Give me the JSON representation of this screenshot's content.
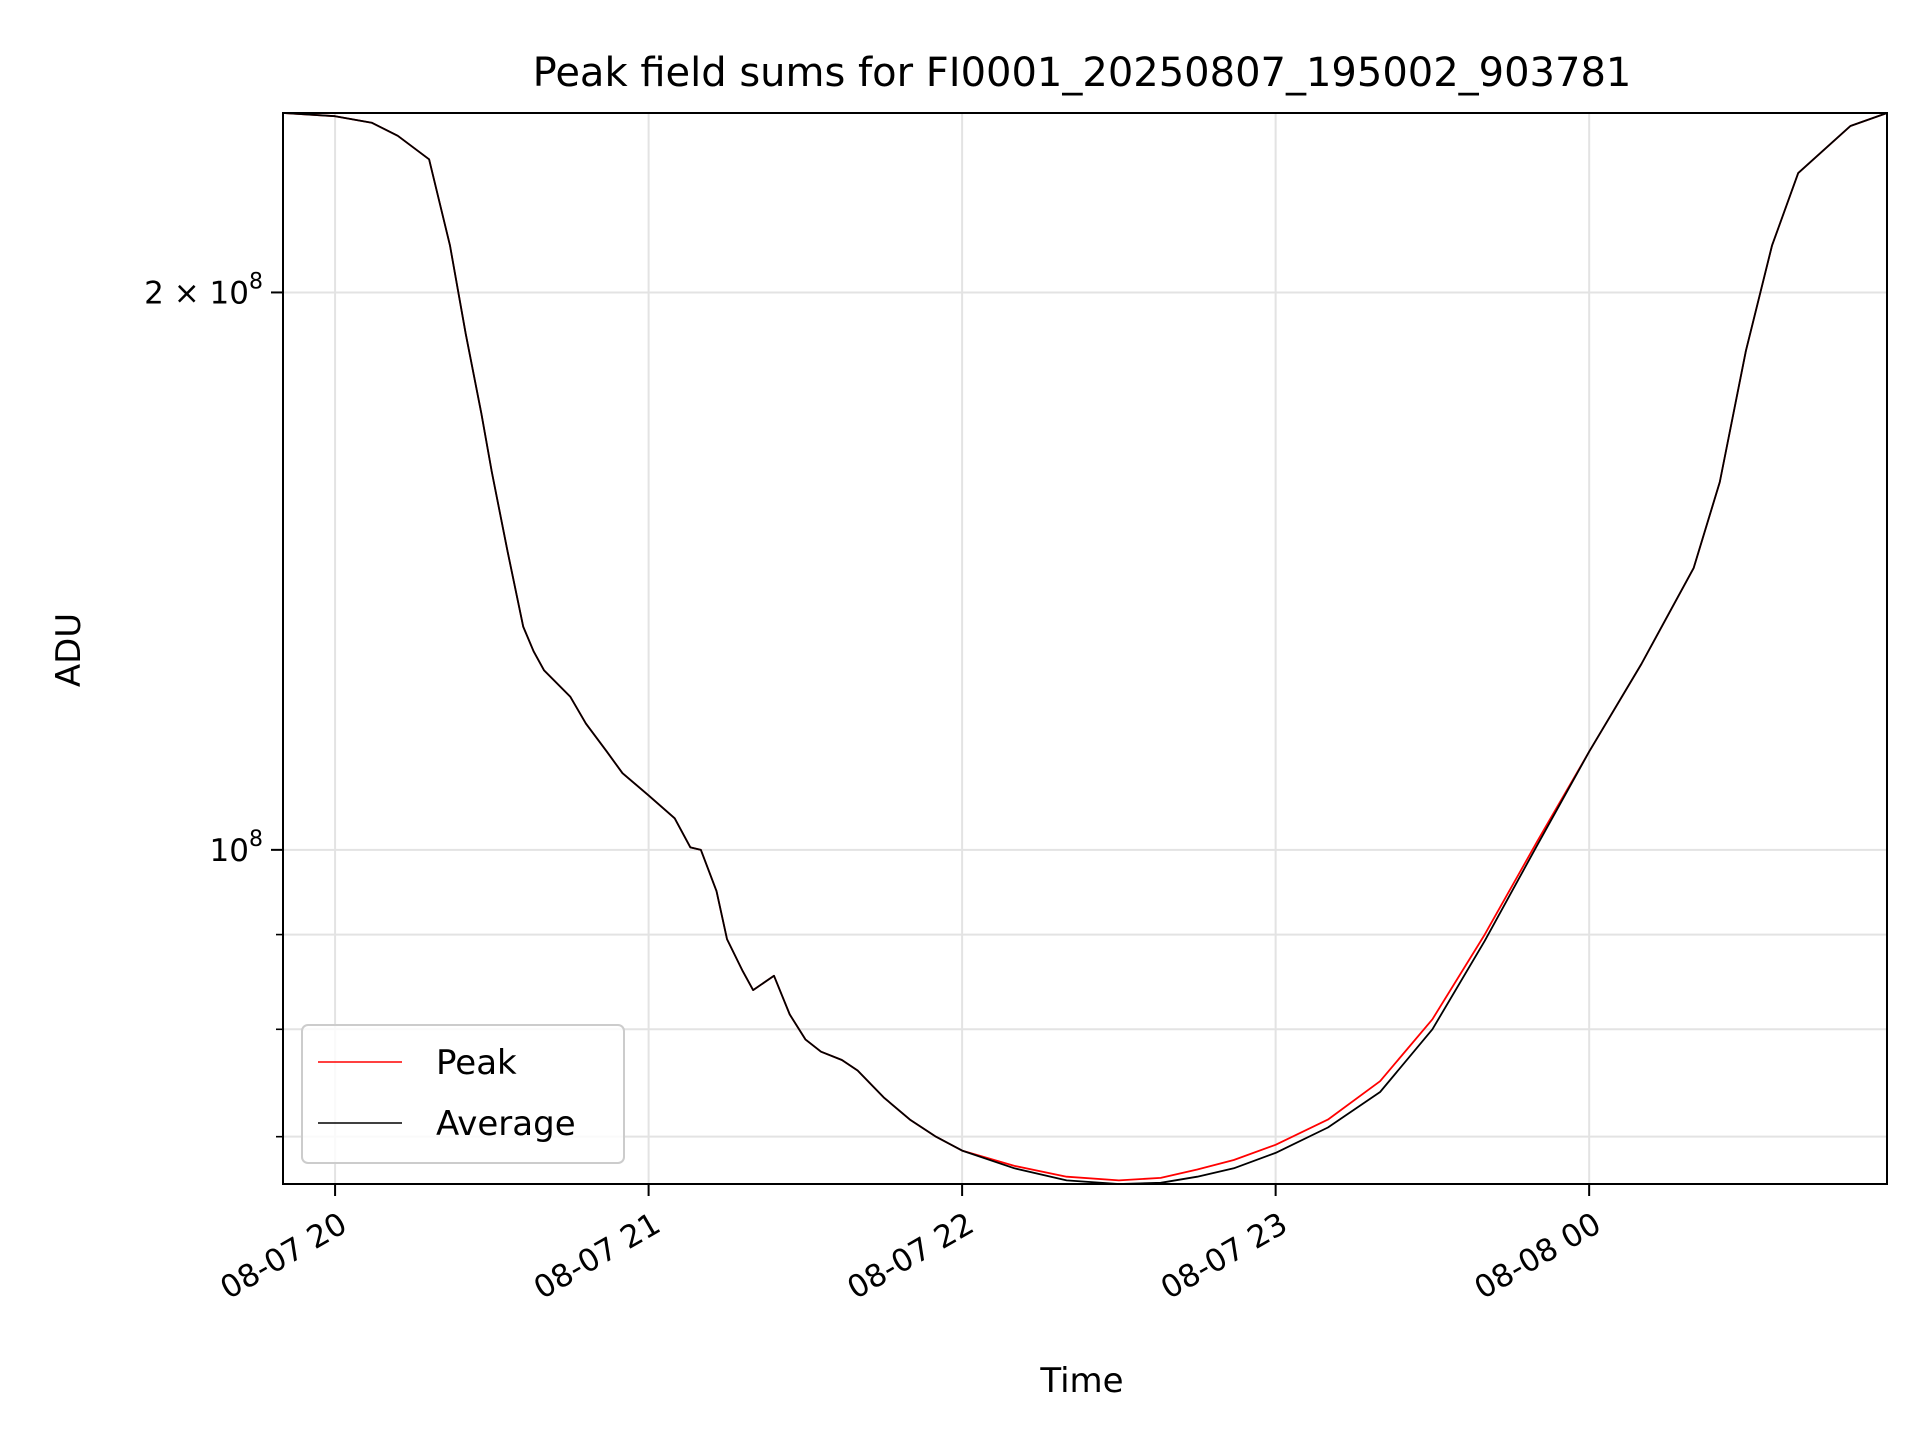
{
  "chart_data": {
    "type": "line",
    "title": "Peak field sums for FI0001_20250807_195002_903781",
    "xlabel": "Time",
    "ylabel": "ADU",
    "x_scale": "time",
    "y_scale": "log",
    "xlim": [
      "2025-08-07 19:50:02",
      "2025-08-08 00:57:00"
    ],
    "ylim": [
      66000000,
      250000000
    ],
    "grid": true,
    "legend_position": "lower-left",
    "x_ticks": [
      {
        "value": "2025-08-07 20:00",
        "label": "08-07 20"
      },
      {
        "value": "2025-08-07 21:00",
        "label": "08-07 21"
      },
      {
        "value": "2025-08-07 22:00",
        "label": "08-07 22"
      },
      {
        "value": "2025-08-07 23:00",
        "label": "08-07 23"
      },
      {
        "value": "2025-08-08 00:00",
        "label": "08-08 00"
      }
    ],
    "y_ticks_major": [
      {
        "value": 200000000,
        "label_base": "2 × 10",
        "label_exp": "8"
      },
      {
        "value": 100000000,
        "label_base": "10",
        "label_exp": "8"
      }
    ],
    "y_ticks_minor": [
      70000000,
      80000000,
      90000000
    ],
    "series": [
      {
        "name": "Peak",
        "color": "#ff0000",
        "x": [
          "2025-08-07 19:50",
          "2025-08-07 20:00",
          "2025-08-07 20:07",
          "2025-08-07 20:12",
          "2025-08-07 20:18",
          "2025-08-07 20:22",
          "2025-08-07 20:25",
          "2025-08-07 20:28",
          "2025-08-07 20:30",
          "2025-08-07 20:33",
          "2025-08-07 20:36",
          "2025-08-07 20:38",
          "2025-08-07 20:40",
          "2025-08-07 20:45",
          "2025-08-07 20:48",
          "2025-08-07 20:52",
          "2025-08-07 20:55",
          "2025-08-07 21:00",
          "2025-08-07 21:05",
          "2025-08-07 21:08",
          "2025-08-07 21:10",
          "2025-08-07 21:13",
          "2025-08-07 21:15",
          "2025-08-07 21:18",
          "2025-08-07 21:20",
          "2025-08-07 21:24",
          "2025-08-07 21:27",
          "2025-08-07 21:30",
          "2025-08-07 21:33",
          "2025-08-07 21:37",
          "2025-08-07 21:40",
          "2025-08-07 21:45",
          "2025-08-07 21:50",
          "2025-08-07 21:55",
          "2025-08-07 22:00",
          "2025-08-07 22:10",
          "2025-08-07 22:20",
          "2025-08-07 22:30",
          "2025-08-07 22:38",
          "2025-08-07 22:45",
          "2025-08-07 22:52",
          "2025-08-07 23:00",
          "2025-08-07 23:10",
          "2025-08-07 23:20",
          "2025-08-07 23:30",
          "2025-08-07 23:40",
          "2025-08-07 23:50",
          "2025-08-08 00:00",
          "2025-08-08 00:10",
          "2025-08-08 00:20",
          "2025-08-08 00:25",
          "2025-08-08 00:30",
          "2025-08-08 00:35",
          "2025-08-08 00:40",
          "2025-08-08 00:50",
          "2025-08-08 00:57"
        ],
        "values": [
          250000000,
          249000000,
          247000000,
          243000000,
          236000000,
          212000000,
          190000000,
          172000000,
          160000000,
          145000000,
          132000000,
          128000000,
          125000000,
          121000000,
          117000000,
          113000000,
          110000000,
          107000000,
          104000000,
          100300000,
          100000000,
          95000000,
          89500000,
          86000000,
          84000000,
          85500000,
          81500000,
          79000000,
          77800000,
          77000000,
          76000000,
          73500000,
          71500000,
          70000000,
          68800000,
          67500000,
          66600000,
          66300000,
          66500000,
          67200000,
          68000000,
          69300000,
          71500000,
          75000000,
          81000000,
          90000000,
          101000000,
          113000000,
          126000000,
          142000000,
          158000000,
          186000000,
          212000000,
          232000000,
          246000000,
          250000000
        ]
      },
      {
        "name": "Average",
        "color": "#000000",
        "x": [
          "2025-08-07 19:50",
          "2025-08-07 20:00",
          "2025-08-07 20:07",
          "2025-08-07 20:12",
          "2025-08-07 20:18",
          "2025-08-07 20:22",
          "2025-08-07 20:25",
          "2025-08-07 20:28",
          "2025-08-07 20:30",
          "2025-08-07 20:33",
          "2025-08-07 20:36",
          "2025-08-07 20:38",
          "2025-08-07 20:40",
          "2025-08-07 20:45",
          "2025-08-07 20:48",
          "2025-08-07 20:52",
          "2025-08-07 20:55",
          "2025-08-07 21:00",
          "2025-08-07 21:05",
          "2025-08-07 21:08",
          "2025-08-07 21:10",
          "2025-08-07 21:13",
          "2025-08-07 21:15",
          "2025-08-07 21:18",
          "2025-08-07 21:20",
          "2025-08-07 21:24",
          "2025-08-07 21:27",
          "2025-08-07 21:30",
          "2025-08-07 21:33",
          "2025-08-07 21:37",
          "2025-08-07 21:40",
          "2025-08-07 21:45",
          "2025-08-07 21:50",
          "2025-08-07 21:55",
          "2025-08-07 22:00",
          "2025-08-07 22:10",
          "2025-08-07 22:20",
          "2025-08-07 22:30",
          "2025-08-07 22:38",
          "2025-08-07 22:45",
          "2025-08-07 22:52",
          "2025-08-07 23:00",
          "2025-08-07 23:10",
          "2025-08-07 23:20",
          "2025-08-07 23:30",
          "2025-08-07 23:40",
          "2025-08-07 23:50",
          "2025-08-08 00:00",
          "2025-08-08 00:10",
          "2025-08-08 00:20",
          "2025-08-08 00:25",
          "2025-08-08 00:30",
          "2025-08-08 00:35",
          "2025-08-08 00:40",
          "2025-08-08 00:50",
          "2025-08-08 00:57"
        ],
        "values": [
          250000000,
          249000000,
          247000000,
          243000000,
          236000000,
          212000000,
          190000000,
          172000000,
          160000000,
          145000000,
          132000000,
          128000000,
          125000000,
          121000000,
          117000000,
          113000000,
          110000000,
          107000000,
          104000000,
          100300000,
          100000000,
          95000000,
          89500000,
          86000000,
          84000000,
          85500000,
          81500000,
          79000000,
          77800000,
          77000000,
          76000000,
          73500000,
          71500000,
          70000000,
          68800000,
          67300000,
          66300000,
          66000000,
          66100000,
          66600000,
          67300000,
          68600000,
          70800000,
          74000000,
          80000000,
          89300000,
          100500000,
          113000000,
          126000000,
          142000000,
          158000000,
          186000000,
          212000000,
          232000000,
          246000000,
          250000000
        ]
      }
    ]
  }
}
